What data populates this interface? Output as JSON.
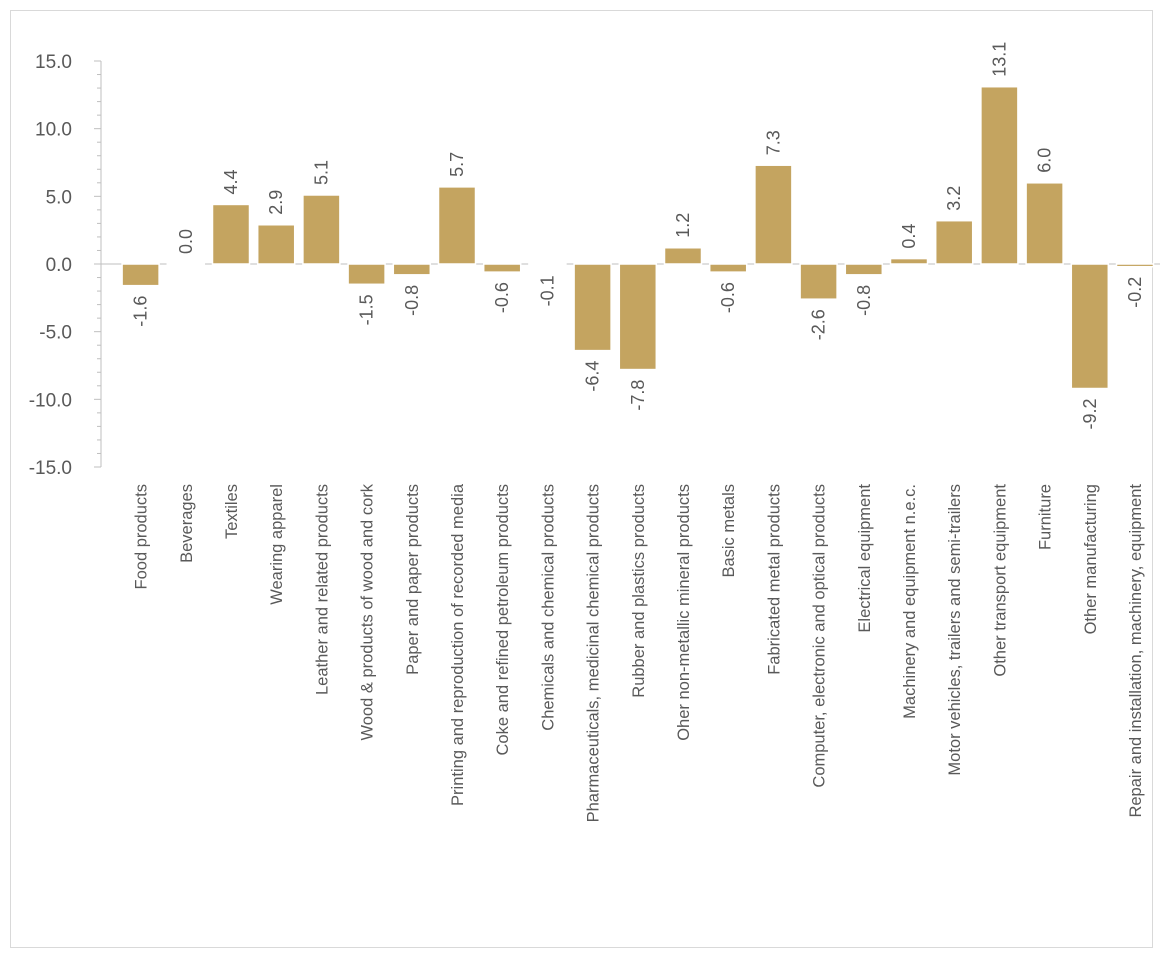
{
  "chart_data": {
    "type": "bar",
    "title": "",
    "xlabel": "",
    "ylabel": "",
    "ylim": [
      -15,
      15
    ],
    "yticks": [
      15,
      10,
      5,
      0,
      -5,
      -10,
      -15
    ],
    "ytick_labels": [
      "15.0",
      "10.0",
      "5.0",
      "0.0",
      "-5.0",
      "-10.0",
      "-15.0"
    ],
    "grid": false,
    "legend": "none",
    "bar_color": "#c4a460",
    "categories": [
      "Food products",
      "Beverages",
      "Textiles",
      "Wearing apparel",
      "Leather and related products",
      "Wood & products of wood and cork",
      "Paper and paper products",
      "Printing and reproduction of recorded media",
      "Coke and refined petroleum products",
      "Chemicals and chemical products",
      "Pharmaceuticals, medicinal chemical products",
      "Rubber and plastics products",
      "Oher non-metallic mineral products",
      "Basic metals",
      "Fabricated metal products",
      "Computer, electronic and optical products",
      "Electrical equipment",
      "Machinery and equipment n.e.c.",
      "Motor vehicles, trailers and semi-trailers",
      "Other transport equipment",
      "Furniture",
      "Other manufacturing",
      "Repair and installation, machinery, equipment"
    ],
    "values": [
      -1.6,
      0.0,
      4.4,
      2.9,
      5.1,
      -1.5,
      -0.8,
      5.7,
      -0.6,
      -0.1,
      -6.4,
      -7.8,
      1.2,
      -0.6,
      7.3,
      -2.6,
      -0.8,
      0.4,
      3.2,
      13.1,
      6.0,
      -9.2,
      -0.2
    ],
    "value_labels": [
      "-1.6",
      "0.0",
      "4.4",
      "2.9",
      "5.1",
      "-1.5",
      "-0.8",
      "5.7",
      "-0.6",
      "-0.1",
      "-6.4",
      "-7.8",
      "1.2",
      "-0.6",
      "7.3",
      "-2.6",
      "-0.8",
      "0.4",
      "3.2",
      "13.1",
      "6.0",
      "-9.2",
      "-0.2"
    ]
  }
}
